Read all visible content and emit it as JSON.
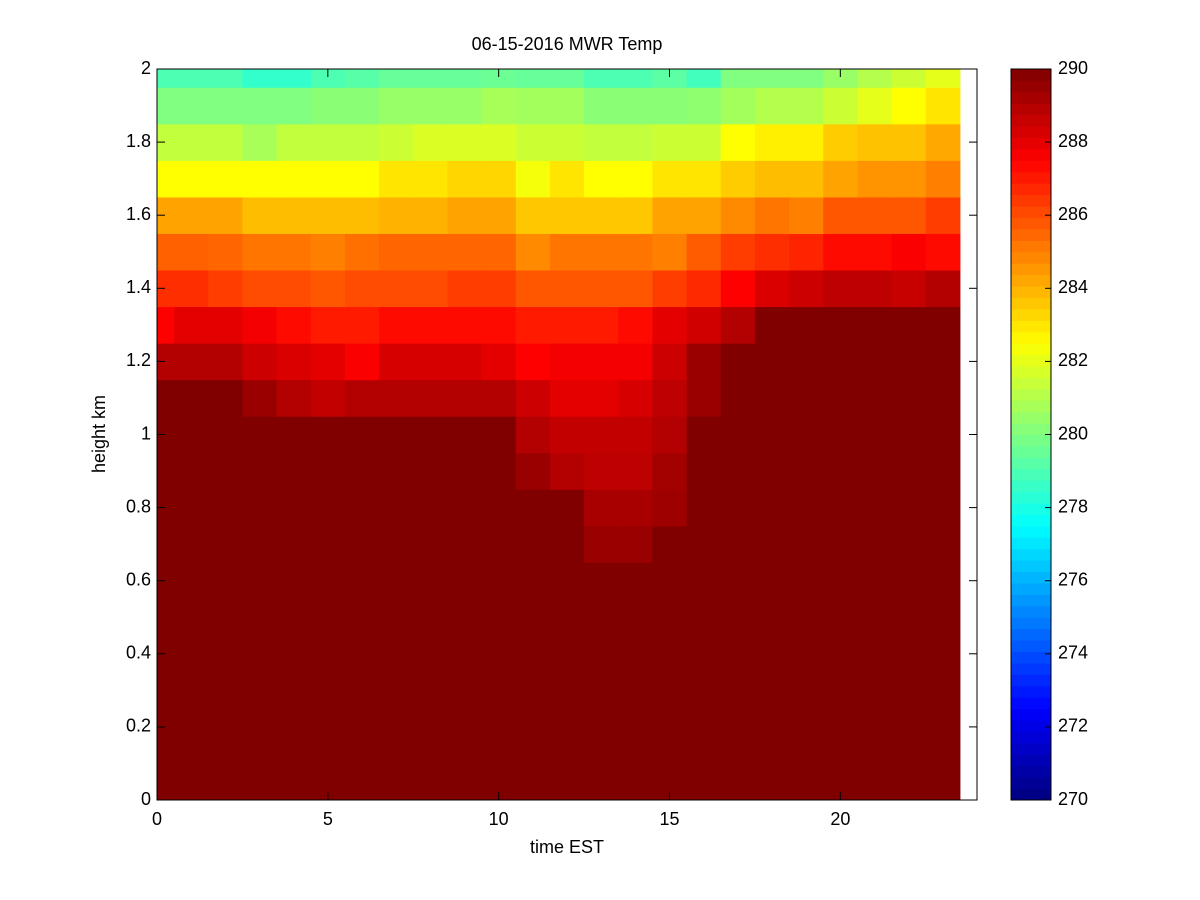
{
  "chart_data": {
    "type": "heatmap",
    "title": "06-15-2016 MWR Temp",
    "xlabel": "time EST",
    "ylabel": "height km",
    "x": [
      0,
      1,
      2,
      3,
      4,
      5,
      6,
      7,
      8,
      9,
      10,
      11,
      12,
      13,
      14,
      15,
      16,
      17,
      18,
      19,
      20,
      21,
      22,
      23
    ],
    "y": [
      0,
      0.1,
      0.2,
      0.3,
      0.4,
      0.5,
      0.6,
      0.7,
      0.8,
      0.9,
      1,
      1.1,
      1.2,
      1.3,
      1.4,
      1.5,
      1.6,
      1.7,
      1.8,
      1.9,
      2
    ],
    "z": [
      [
        290,
        290,
        290,
        290,
        290,
        290,
        290,
        290,
        290,
        290,
        290,
        290,
        290,
        290,
        290,
        290,
        290,
        290,
        290,
        290,
        290,
        290,
        290,
        290
      ],
      [
        290,
        290,
        290,
        290,
        290,
        290,
        290,
        290,
        290,
        290,
        290,
        290,
        290,
        290,
        290,
        290,
        290,
        290,
        290,
        290,
        290,
        290,
        290,
        290
      ],
      [
        290,
        290,
        290,
        290,
        290,
        290,
        290,
        290,
        290,
        290,
        290,
        290,
        290,
        290,
        290,
        290,
        290,
        290,
        290,
        290,
        290,
        290,
        290,
        290
      ],
      [
        290,
        290,
        290,
        290,
        290,
        290,
        290,
        290,
        290,
        290,
        290,
        290,
        290,
        290,
        290,
        290,
        290,
        290,
        290,
        290,
        290,
        290,
        290,
        290
      ],
      [
        290,
        290,
        290,
        290,
        290,
        290,
        290,
        290,
        290,
        290,
        290,
        290,
        290,
        290,
        290,
        290,
        290,
        290,
        290,
        290,
        290,
        290,
        290,
        290
      ],
      [
        290,
        290,
        290,
        290,
        290,
        290,
        290,
        290,
        290,
        290,
        290,
        290,
        290,
        290,
        290,
        290,
        290,
        290,
        290,
        290,
        290,
        290,
        290,
        290
      ],
      [
        290,
        290,
        290,
        290,
        290,
        290,
        290,
        290,
        290,
        290,
        290,
        290,
        290,
        290,
        290,
        290,
        290,
        290,
        290,
        290,
        290,
        290,
        290,
        290
      ],
      [
        290,
        290,
        290,
        290,
        290,
        290,
        290,
        290,
        290,
        290,
        290,
        290,
        290,
        289.5,
        289.5,
        290,
        290,
        290,
        290,
        290,
        290,
        290,
        290,
        290
      ],
      [
        290,
        290,
        290,
        290,
        290,
        290,
        290,
        290,
        290,
        290,
        290,
        290,
        290,
        289.2,
        289.2,
        289.4,
        290,
        290,
        290,
        290,
        290,
        290,
        290,
        290
      ],
      [
        290,
        290,
        290,
        290,
        290,
        290,
        290,
        290,
        290,
        290,
        290,
        289.5,
        289,
        288.8,
        288.8,
        289.3,
        290,
        290,
        290,
        290,
        290,
        290,
        290,
        290
      ],
      [
        290,
        290,
        290,
        290,
        290,
        290,
        290,
        290,
        290,
        290,
        290,
        289,
        288.7,
        288.7,
        288.7,
        289,
        290,
        290,
        290,
        290,
        290,
        290,
        290,
        290
      ],
      [
        290,
        290,
        290,
        289.5,
        289,
        288.7,
        289,
        289,
        289,
        289,
        289,
        288.5,
        288,
        288,
        288.3,
        288.8,
        289.5,
        290,
        290,
        290,
        290,
        290,
        290,
        290
      ],
      [
        289,
        289,
        289,
        288.5,
        288.2,
        288,
        287.6,
        288.3,
        288.3,
        288.3,
        288,
        287.5,
        287.7,
        287.7,
        287.7,
        288.5,
        289.5,
        290,
        290,
        290,
        290,
        290,
        290,
        290
      ],
      [
        287.5,
        288,
        288,
        287.7,
        287.3,
        287,
        287,
        287.3,
        287.3,
        287.3,
        287.3,
        287,
        287,
        287,
        287.3,
        288,
        288.4,
        289,
        290,
        290,
        290,
        290,
        290,
        290
      ],
      [
        286.6,
        286.6,
        286.3,
        286,
        286,
        285.8,
        286,
        286,
        286,
        286.3,
        286.3,
        285.8,
        285.8,
        285.8,
        285.8,
        286.3,
        286.7,
        287.5,
        288.2,
        288.5,
        288.8,
        288.8,
        288.6,
        289
      ],
      [
        285.6,
        285.6,
        285.5,
        285.2,
        285.2,
        285,
        285.3,
        285.5,
        285.5,
        285.5,
        285.5,
        284.8,
        285.2,
        285.2,
        285.2,
        285,
        285.7,
        286.3,
        286.6,
        286.8,
        287.3,
        287.3,
        287.6,
        287.3
      ],
      [
        284.3,
        284.3,
        284.3,
        283.8,
        283.8,
        283.8,
        283.8,
        284,
        284,
        284.3,
        284.3,
        283.6,
        283.6,
        283.6,
        283.6,
        284.3,
        284.3,
        284.8,
        285.2,
        285,
        285.8,
        285.8,
        285.8,
        286.3
      ],
      [
        282.5,
        282.5,
        282.5,
        282.5,
        282.5,
        282.5,
        282.5,
        283,
        283,
        283.3,
        283.3,
        282.3,
        283,
        282.5,
        282.5,
        283,
        283,
        283.5,
        283.8,
        283.8,
        284.3,
        284.6,
        284.6,
        285
      ],
      [
        281.3,
        281.3,
        281.3,
        280.8,
        281.3,
        281.3,
        281.3,
        281.5,
        281.8,
        281.8,
        281.8,
        281.5,
        281.5,
        281.3,
        281.3,
        281.5,
        281.5,
        282.5,
        282.8,
        282.8,
        283.5,
        283.7,
        283.7,
        284.2
      ],
      [
        280,
        280,
        280,
        280,
        280,
        280.2,
        280.2,
        280.5,
        280.5,
        280.5,
        280.8,
        280.7,
        280.7,
        280.2,
        280.2,
        280.2,
        280.3,
        280.7,
        281,
        281,
        281.5,
        282,
        282.5,
        283
      ],
      [
        279,
        279,
        279,
        278.5,
        278.5,
        279,
        279.2,
        279.5,
        279.5,
        279.5,
        279.6,
        279.5,
        279.5,
        279,
        279,
        279.3,
        278.8,
        280,
        280,
        280,
        280.5,
        281,
        281.5,
        282
      ]
    ],
    "xlim": [
      0,
      24
    ],
    "ylim": [
      0,
      2
    ],
    "xticks": [
      0,
      5,
      10,
      15,
      20
    ],
    "yticks": [
      0,
      0.2,
      0.4,
      0.6,
      0.8,
      1,
      1.2,
      1.4,
      1.6,
      1.8,
      2
    ],
    "colormap": "jet",
    "clim": [
      270,
      290
    ],
    "cticks": [
      270,
      272,
      274,
      276,
      278,
      280,
      282,
      284,
      286,
      288,
      290
    ]
  }
}
